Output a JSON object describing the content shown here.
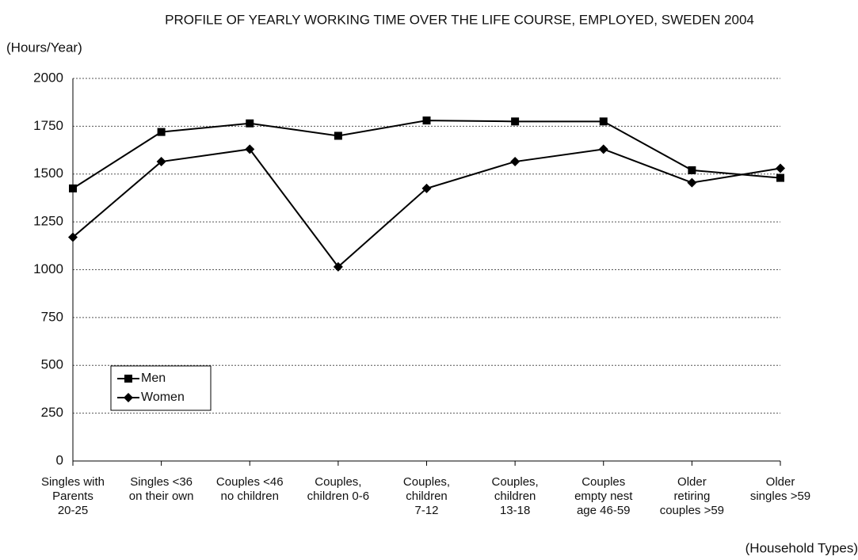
{
  "chart_data": {
    "type": "line",
    "title": "PROFILE OF YEARLY WORKING TIME OVER THE LIFE COURSE, EMPLOYED, SWEDEN 2004",
    "y_label": "(Hours/Year)",
    "x_label": "(Household Types)",
    "categories": [
      "Singles with\nParents\n20-25",
      "Singles  <36\non their own",
      "Couples <46\nno children",
      "Couples,\nchildren 0-6",
      "Couples,\nchildren\n7-12",
      "Couples,\nchildren\n13-18",
      "Couples\nempty nest\nage 46-59",
      "Older\nretiring\ncouples >59",
      "Older\nsingles >59"
    ],
    "series": [
      {
        "name": "Men",
        "color": "#000000",
        "marker": "square",
        "values": [
          1425,
          1720,
          1765,
          1700,
          1780,
          1775,
          1775,
          1520,
          1480
        ]
      },
      {
        "name": "Women",
        "color": "#000000",
        "marker": "diamond",
        "values": [
          1170,
          1565,
          1630,
          1015,
          1425,
          1565,
          1630,
          1455,
          1530
        ]
      }
    ],
    "ylim": [
      0,
      2000
    ],
    "yticks": [
      0,
      250,
      500,
      750,
      1000,
      1250,
      1500,
      1750,
      2000
    ],
    "grid": true,
    "legend": "lower left"
  }
}
